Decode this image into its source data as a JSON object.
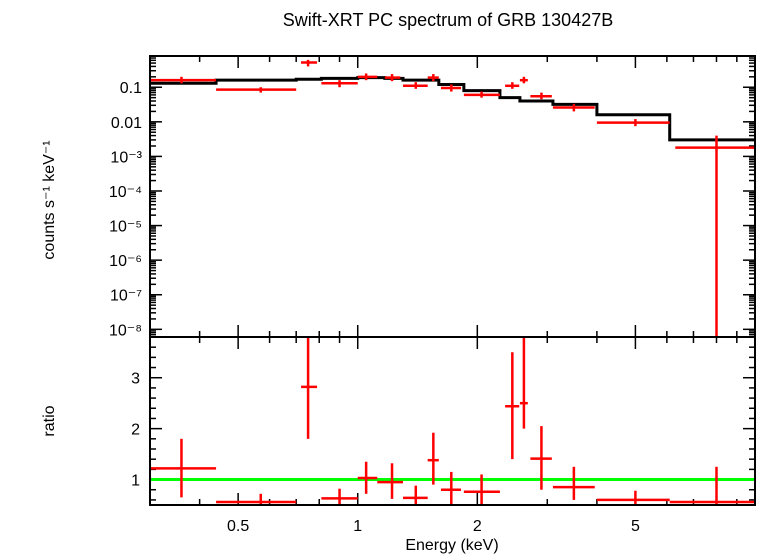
{
  "chart_data": [
    {
      "type": "line",
      "panel": "spectrum",
      "title": "Swift-XRT PC spectrum of GRB 130427B",
      "xlabel": "Energy (keV)",
      "ylabel": "counts s⁻¹ keV⁻¹",
      "x_scale": "log",
      "y_scale": "log",
      "xlim": [
        0.3,
        10
      ],
      "ylim": [
        6e-09,
        0.8
      ],
      "ytick_labels": [
        "0.1",
        "0.01",
        "10⁻³",
        "10⁻⁴",
        "10⁻⁵",
        "10⁻⁶",
        "10⁻⁷",
        "10⁻⁸"
      ],
      "series": [
        {
          "color": "#ff0000",
          "style": "crosses",
          "points": [
            {
              "x": 0.36,
              "xlo": 0.3,
              "xhi": 0.44,
              "y": 0.16,
              "ylo": 0.13,
              "yhi": 0.2
            },
            {
              "x": 0.57,
              "xlo": 0.44,
              "xhi": 0.7,
              "y": 0.085,
              "ylo": 0.07,
              "yhi": 0.1
            },
            {
              "x": 0.75,
              "xlo": 0.72,
              "xhi": 0.79,
              "y": 0.52,
              "ylo": 0.4,
              "yhi": 0.62
            },
            {
              "x": 0.9,
              "xlo": 0.81,
              "xhi": 1.0,
              "y": 0.13,
              "ylo": 0.1,
              "yhi": 0.16
            },
            {
              "x": 1.05,
              "xlo": 1.0,
              "xhi": 1.12,
              "y": 0.2,
              "ylo": 0.16,
              "yhi": 0.25
            },
            {
              "x": 1.22,
              "xlo": 1.17,
              "xhi": 1.28,
              "y": 0.19,
              "ylo": 0.15,
              "yhi": 0.24
            },
            {
              "x": 1.4,
              "xlo": 1.3,
              "xhi": 1.5,
              "y": 0.11,
              "ylo": 0.09,
              "yhi": 0.14
            },
            {
              "x": 1.55,
              "xlo": 1.5,
              "xhi": 1.6,
              "y": 0.19,
              "ylo": 0.15,
              "yhi": 0.24
            },
            {
              "x": 1.72,
              "xlo": 1.62,
              "xhi": 1.82,
              "y": 0.095,
              "ylo": 0.075,
              "yhi": 0.12
            },
            {
              "x": 2.05,
              "xlo": 1.85,
              "xhi": 2.28,
              "y": 0.06,
              "ylo": 0.05,
              "yhi": 0.075
            },
            {
              "x": 2.45,
              "xlo": 2.35,
              "xhi": 2.55,
              "y": 0.11,
              "ylo": 0.09,
              "yhi": 0.14
            },
            {
              "x": 2.62,
              "xlo": 2.56,
              "xhi": 2.68,
              "y": 0.16,
              "ylo": 0.13,
              "yhi": 0.2
            },
            {
              "x": 2.9,
              "xlo": 2.72,
              "xhi": 3.08,
              "y": 0.055,
              "ylo": 0.045,
              "yhi": 0.07
            },
            {
              "x": 3.5,
              "xlo": 3.1,
              "xhi": 3.95,
              "y": 0.026,
              "ylo": 0.02,
              "yhi": 0.033
            },
            {
              "x": 5.0,
              "xlo": 4.0,
              "xhi": 6.1,
              "y": 0.0095,
              "ylo": 0.0075,
              "yhi": 0.012
            },
            {
              "x": 8.0,
              "xlo": 6.3,
              "xhi": 10.0,
              "y": 0.0018,
              "ylo": 6e-09,
              "yhi": 0.004
            }
          ]
        },
        {
          "color": "#000000",
          "style": "step",
          "bins": [
            {
              "xlo": 0.3,
              "xhi": 0.44,
              "y": 0.13
            },
            {
              "xlo": 0.44,
              "xhi": 0.7,
              "y": 0.16
            },
            {
              "xlo": 0.7,
              "xhi": 0.81,
              "y": 0.17
            },
            {
              "xlo": 0.81,
              "xhi": 1.0,
              "y": 0.18
            },
            {
              "xlo": 1.0,
              "xhi": 1.17,
              "y": 0.19
            },
            {
              "xlo": 1.17,
              "xhi": 1.3,
              "y": 0.18
            },
            {
              "xlo": 1.3,
              "xhi": 1.6,
              "y": 0.16
            },
            {
              "xlo": 1.6,
              "xhi": 1.85,
              "y": 0.12
            },
            {
              "xlo": 1.85,
              "xhi": 2.28,
              "y": 0.08
            },
            {
              "xlo": 2.28,
              "xhi": 2.56,
              "y": 0.05
            },
            {
              "xlo": 2.56,
              "xhi": 3.1,
              "y": 0.04
            },
            {
              "xlo": 3.1,
              "xhi": 4.0,
              "y": 0.032
            },
            {
              "xlo": 4.0,
              "xhi": 6.1,
              "y": 0.016
            },
            {
              "xlo": 6.1,
              "xhi": 10.0,
              "y": 0.003
            }
          ]
        }
      ]
    },
    {
      "type": "line",
      "panel": "ratio",
      "xlabel": "Energy (keV)",
      "ylabel": "ratio",
      "x_scale": "log",
      "xlim": [
        0.3,
        10
      ],
      "ylim": [
        0.5,
        3.8
      ],
      "xtick_labels": [
        "0.5",
        "1",
        "2",
        "5"
      ],
      "ytick_labels": [
        "1",
        "2",
        "3"
      ],
      "series": [
        {
          "color": "#ff0000",
          "style": "crosses",
          "points": [
            {
              "x": 0.36,
              "xlo": 0.3,
              "xhi": 0.44,
              "y": 1.22,
              "ylo": 0.65,
              "yhi": 1.8
            },
            {
              "x": 0.57,
              "xlo": 0.44,
              "xhi": 0.7,
              "y": 0.56,
              "ylo": 0.5,
              "yhi": 0.72
            },
            {
              "x": 0.75,
              "xlo": 0.72,
              "xhi": 0.79,
              "y": 2.82,
              "ylo": 1.8,
              "yhi": 3.8
            },
            {
              "x": 0.9,
              "xlo": 0.81,
              "xhi": 1.0,
              "y": 0.63,
              "ylo": 0.5,
              "yhi": 0.82
            },
            {
              "x": 1.05,
              "xlo": 1.0,
              "xhi": 1.12,
              "y": 1.03,
              "ylo": 0.72,
              "yhi": 1.35
            },
            {
              "x": 1.22,
              "xlo": 1.12,
              "xhi": 1.3,
              "y": 0.95,
              "ylo": 0.62,
              "yhi": 1.32
            },
            {
              "x": 1.4,
              "xlo": 1.3,
              "xhi": 1.5,
              "y": 0.64,
              "ylo": 0.5,
              "yhi": 0.88
            },
            {
              "x": 1.55,
              "xlo": 1.5,
              "xhi": 1.6,
              "y": 1.38,
              "ylo": 0.9,
              "yhi": 1.92
            },
            {
              "x": 1.72,
              "xlo": 1.62,
              "xhi": 1.82,
              "y": 0.8,
              "ylo": 0.5,
              "yhi": 1.15
            },
            {
              "x": 2.05,
              "xlo": 1.85,
              "xhi": 2.28,
              "y": 0.76,
              "ylo": 0.5,
              "yhi": 1.1
            },
            {
              "x": 2.45,
              "xlo": 2.35,
              "xhi": 2.55,
              "y": 2.44,
              "ylo": 1.4,
              "yhi": 3.5
            },
            {
              "x": 2.62,
              "xlo": 2.56,
              "xhi": 2.68,
              "y": 2.5,
              "ylo": 2.0,
              "yhi": 3.8
            },
            {
              "x": 2.9,
              "xlo": 2.72,
              "xhi": 3.08,
              "y": 1.41,
              "ylo": 0.8,
              "yhi": 2.05
            },
            {
              "x": 3.5,
              "xlo": 3.1,
              "xhi": 3.95,
              "y": 0.85,
              "ylo": 0.6,
              "yhi": 1.25
            },
            {
              "x": 5.0,
              "xlo": 4.0,
              "xhi": 6.1,
              "y": 0.6,
              "ylo": 0.5,
              "yhi": 0.78
            },
            {
              "x": 8.0,
              "xlo": 6.1,
              "xhi": 10.0,
              "y": 0.56,
              "ylo": 0.5,
              "yhi": 1.25
            }
          ]
        },
        {
          "color": "#00ff00",
          "style": "reference-line",
          "y": 1
        }
      ]
    }
  ]
}
